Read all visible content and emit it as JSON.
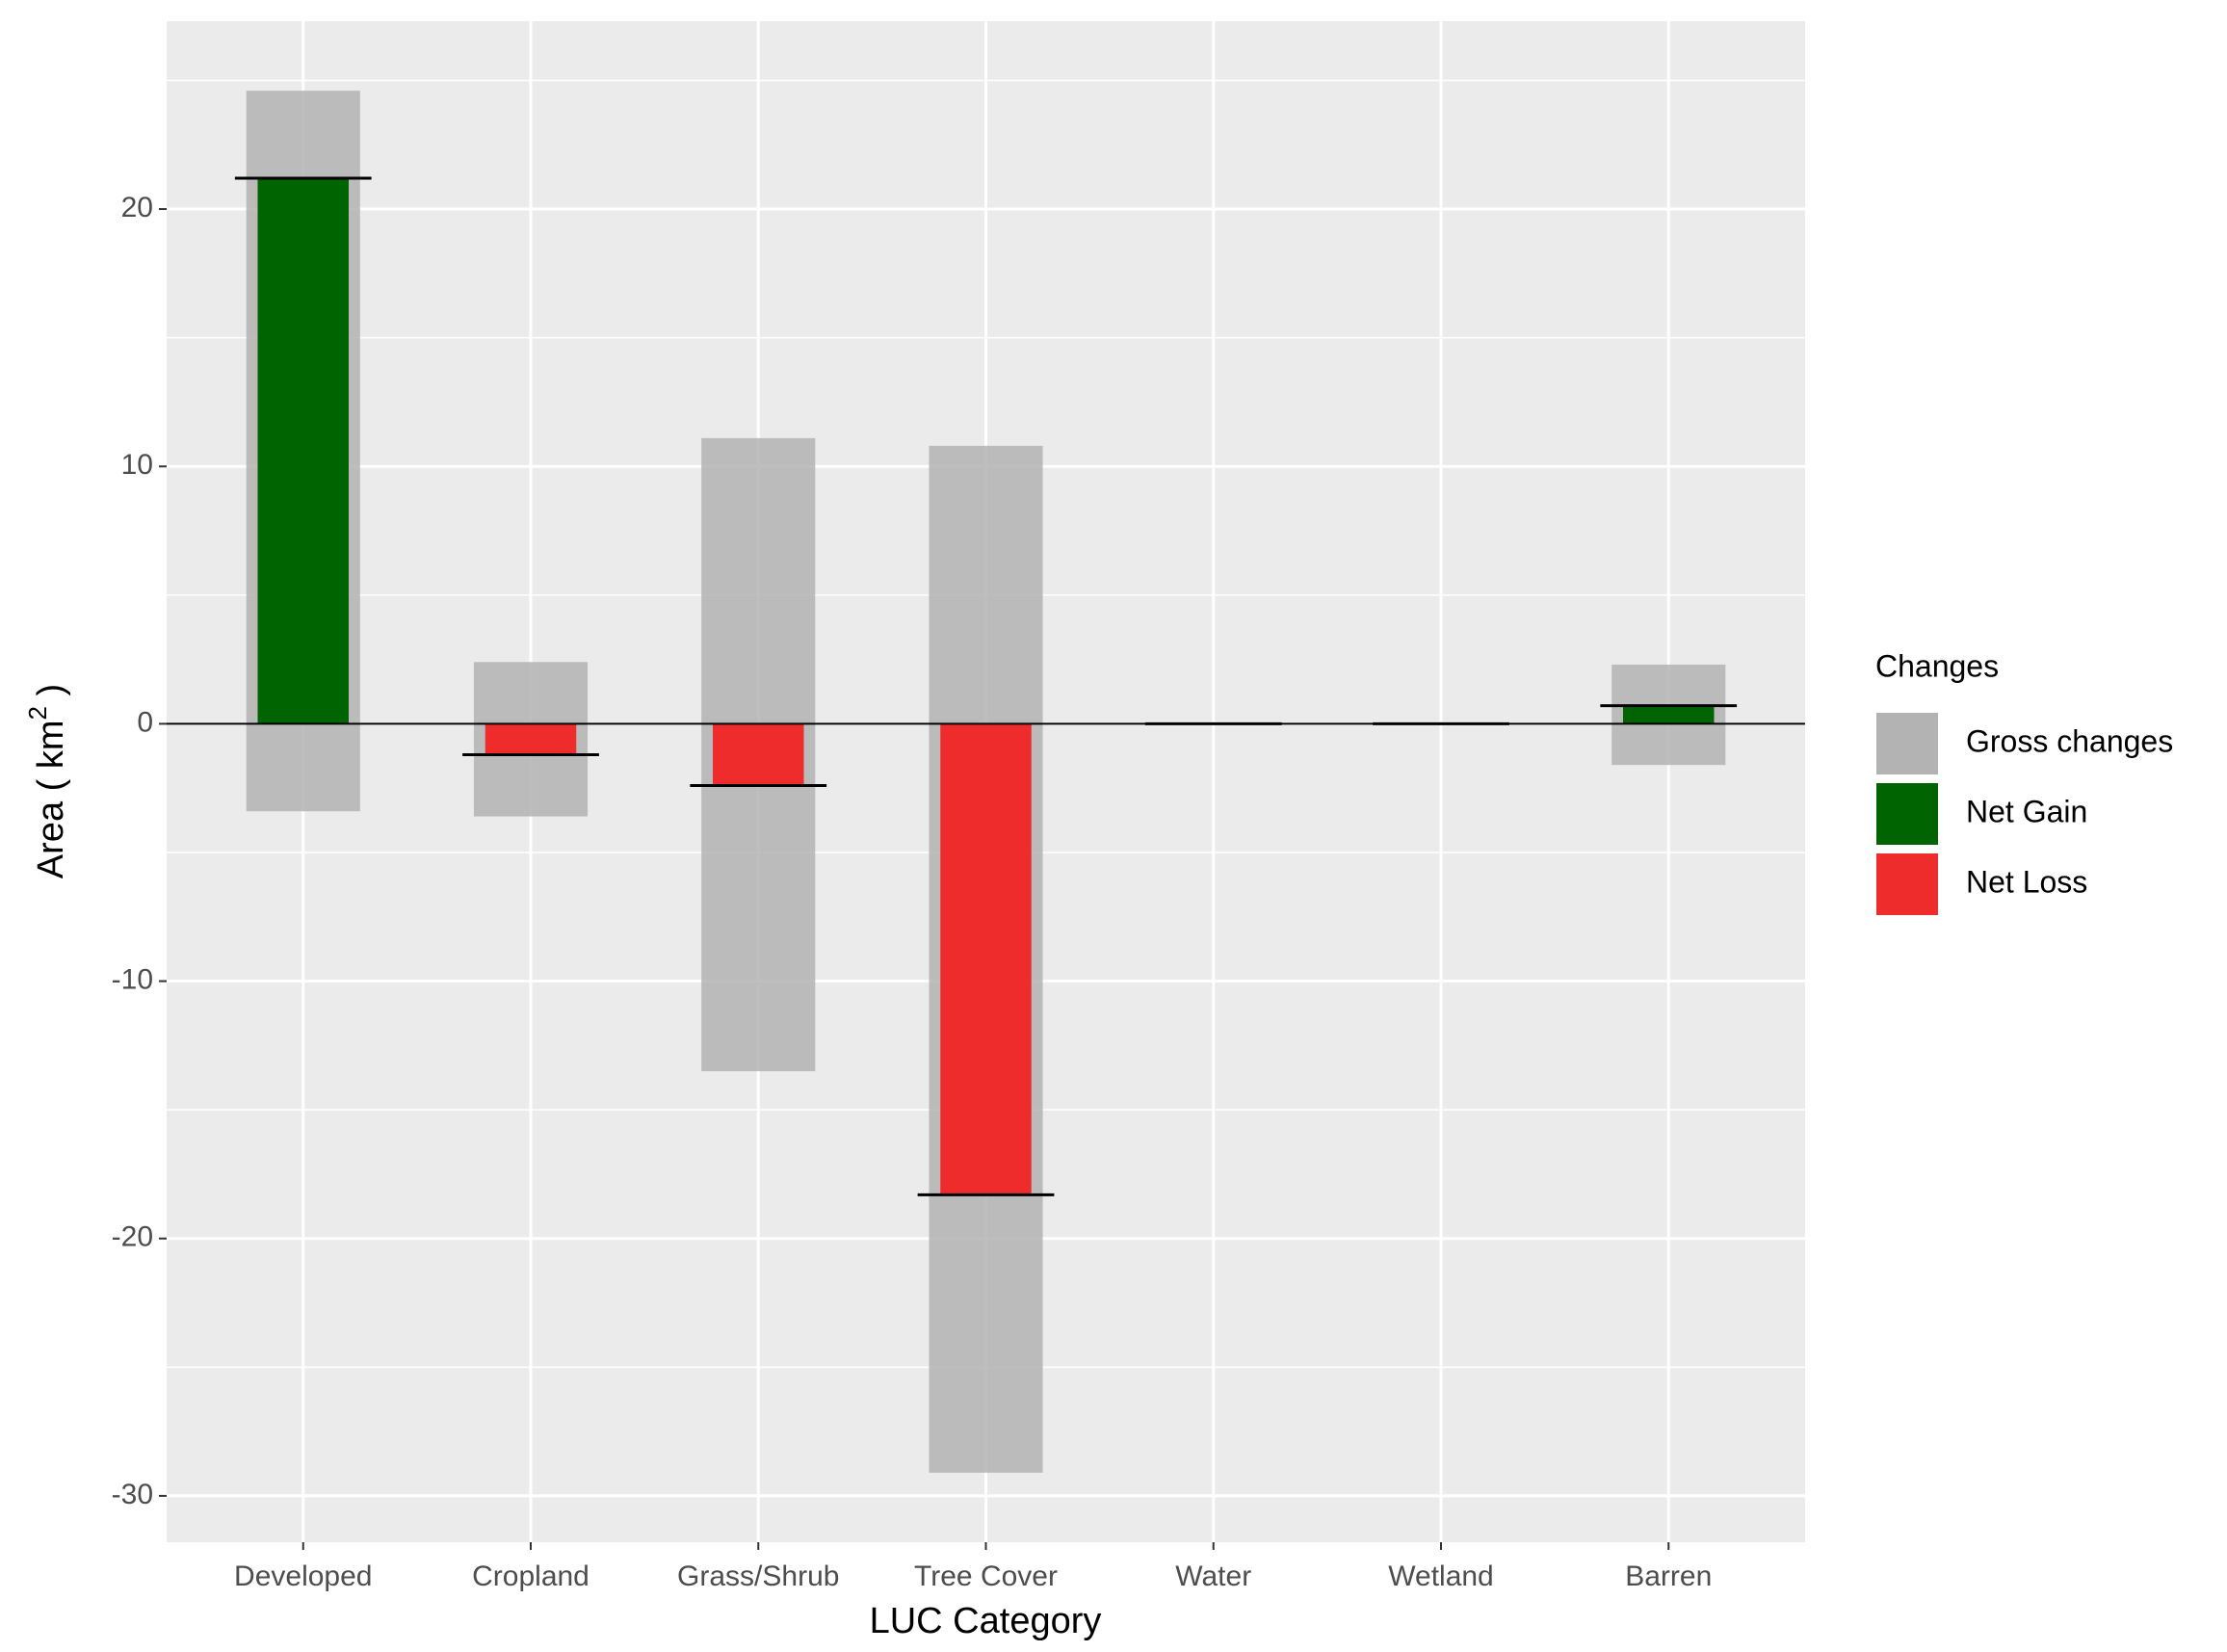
{
  "chart_data": {
    "type": "bar",
    "x_label": "LUC Category",
    "y_label": {
      "text": "Area ( km",
      "superscript": "2",
      "suffix": " )"
    },
    "categories": [
      "Developed",
      "Cropland",
      "Grass/Shrub",
      "Tree Cover",
      "Water",
      "Wetland",
      "Barren"
    ],
    "gross_gain": [
      24.6,
      2.4,
      11.1,
      10.8,
      0,
      0,
      2.3
    ],
    "gross_loss": [
      -3.4,
      -3.6,
      -13.5,
      -29.1,
      0,
      0,
      -1.6
    ],
    "net": [
      21.2,
      -1.2,
      -2.4,
      -18.3,
      0,
      0,
      0.7
    ],
    "legend": {
      "title": "Changes",
      "position": "right",
      "entries": [
        {
          "name": "Gross changes",
          "color": "#b3b3b3"
        },
        {
          "name": "Net Gain",
          "color": "#006400"
        },
        {
          "name": "Net Loss",
          "color": "#ee2c2c"
        }
      ]
    },
    "ylim": [
      -31.8,
      27.3
    ],
    "yticks": [
      -30,
      -20,
      -10,
      0,
      10,
      20
    ],
    "yminor_ticks": [
      -25,
      -15,
      -5,
      5,
      15,
      25
    ],
    "hline": 0,
    "grid": true
  }
}
